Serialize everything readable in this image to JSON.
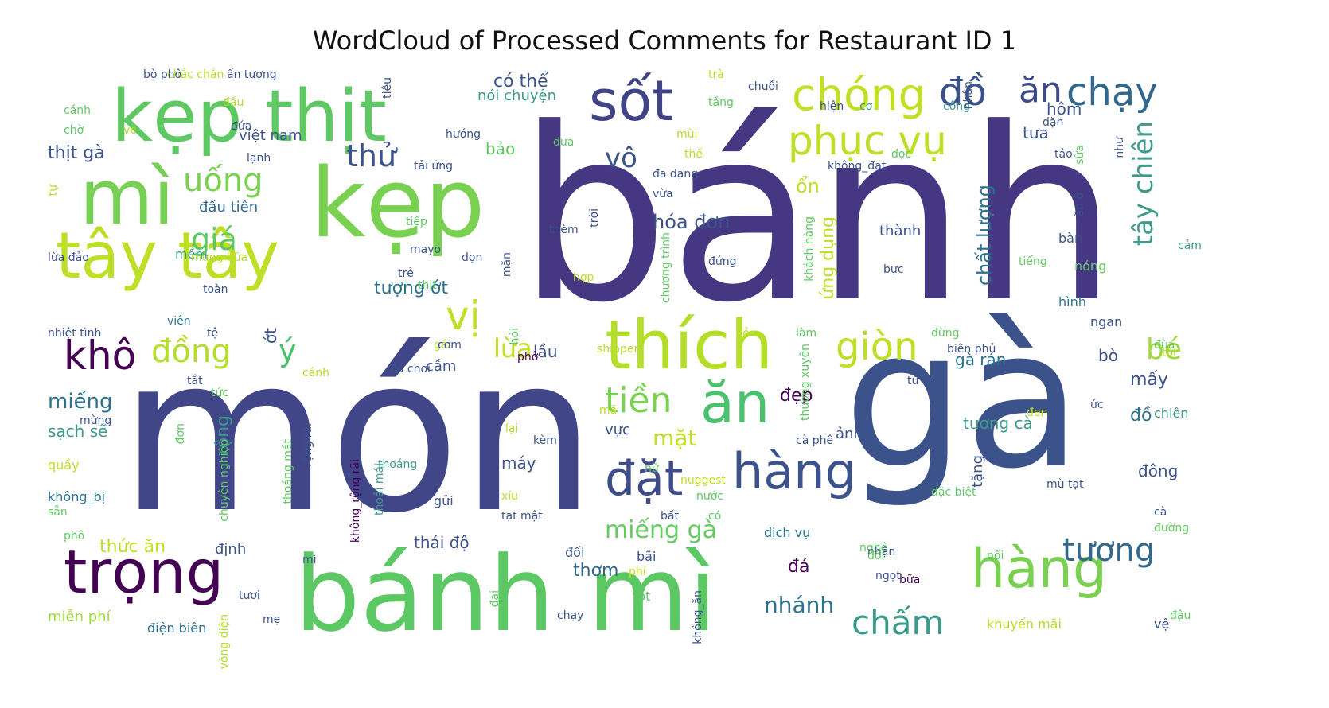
{
  "chart_data": {
    "type": "wordcloud",
    "title": "WordCloud of Processed Comments for Restaurant ID 1",
    "colormap": "viridis",
    "background": "#ffffff",
    "words": [
      {
        "text": "bánh",
        "weight": 100,
        "color": "#453781"
      },
      {
        "text": "món",
        "weight": 86,
        "color": "#404688"
      },
      {
        "text": "gà",
        "weight": 84,
        "color": "#3b528b"
      },
      {
        "text": "bánh mì",
        "weight": 50,
        "color": "#5cc863"
      },
      {
        "text": "kẹp",
        "weight": 46,
        "color": "#7ad151"
      },
      {
        "text": "kẹp thịt",
        "weight": 31,
        "color": "#5ec962"
      },
      {
        "text": "mì",
        "weight": 29,
        "color": "#75d054"
      },
      {
        "text": "tây tây",
        "weight": 26,
        "color": "#bddf26"
      },
      {
        "text": "trọng",
        "weight": 22,
        "color": "#440154"
      },
      {
        "text": "sốt",
        "weight": 20,
        "color": "#414487"
      },
      {
        "text": "thích",
        "weight": 22,
        "color": "#b5de2b"
      },
      {
        "text": "hàng",
        "weight": 19,
        "color": "#7ad151"
      },
      {
        "text": "ăn",
        "weight": 18,
        "color": "#4ac16d"
      },
      {
        "text": "đặt",
        "weight": 16,
        "color": "#3e4c8a"
      },
      {
        "text": "hàng",
        "weight": 15,
        "color": "#3b528b"
      },
      {
        "text": "chóng",
        "weight": 14,
        "color": "#c2df23"
      },
      {
        "text": "chạy",
        "weight": 13,
        "color": "#31688e"
      },
      {
        "text": "đồ",
        "weight": 12,
        "color": "#3b528b"
      },
      {
        "text": "ăn",
        "weight": 12,
        "color": "#3e4a89"
      },
      {
        "text": "khô",
        "weight": 12,
        "color": "#440154"
      },
      {
        "text": "phục vụ",
        "weight": 12,
        "color": "#bddf26"
      },
      {
        "text": "vị",
        "weight": 11,
        "color": "#bddf26"
      },
      {
        "text": "giòn",
        "weight": 11,
        "color": "#bddf26"
      },
      {
        "text": "chấm",
        "weight": 11,
        "color": "#3b9b8a"
      },
      {
        "text": "tương",
        "weight": 10,
        "color": "#31688e"
      },
      {
        "text": "tiền",
        "weight": 10,
        "color": "#7ad151"
      },
      {
        "text": "uống",
        "weight": 10,
        "color": "#7ad151"
      },
      {
        "text": "đồng",
        "weight": 10,
        "color": "#b5de2b"
      },
      {
        "text": "ý",
        "weight": 9,
        "color": "#4ac16d"
      },
      {
        "text": "thử",
        "weight": 9,
        "color": "#3b528b"
      },
      {
        "text": "giá",
        "weight": 9,
        "color": "#5ec962"
      },
      {
        "text": "tây chiên",
        "weight": 9,
        "color": "#3e9a8a"
      },
      {
        "text": "bé",
        "weight": 9,
        "color": "#a0da39"
      },
      {
        "text": "lừa",
        "weight": 8,
        "color": "#c2df23"
      },
      {
        "text": "vô",
        "weight": 8,
        "color": "#3b528b"
      },
      {
        "text": "miếng gà",
        "weight": 8,
        "color": "#63cb5f"
      },
      {
        "text": "nhánh",
        "weight": 7,
        "color": "#2c728e"
      },
      {
        "text": "mặt",
        "weight": 7,
        "color": "#c2df23"
      },
      {
        "text": "chất lượng",
        "weight": 6,
        "color": "#2c728e"
      },
      {
        "text": "có thể",
        "weight": 6,
        "color": "#3b528b"
      },
      {
        "text": "hóa đơn",
        "weight": 6,
        "color": "#3b528b"
      },
      {
        "text": "ổn",
        "weight": 6,
        "color": "#c2df23"
      },
      {
        "text": "miếng",
        "weight": 6,
        "color": "#2c728e"
      },
      {
        "text": "thịt gà",
        "weight": 5,
        "color": "#3b528b"
      },
      {
        "text": "tượng ớt",
        "weight": 5,
        "color": "#2c728e"
      },
      {
        "text": "thức ăn",
        "weight": 5,
        "color": "#bddf26"
      },
      {
        "text": "thái độ",
        "weight": 5,
        "color": "#3b528b"
      },
      {
        "text": "lầu",
        "weight": 5,
        "color": "#3b528b"
      },
      {
        "text": "máy",
        "weight": 5,
        "color": "#3b528b"
      },
      {
        "text": "đẹp",
        "weight": 5,
        "color": "#440154"
      },
      {
        "text": "thơm",
        "weight": 5,
        "color": "#31688e"
      },
      {
        "text": "đá",
        "weight": 5,
        "color": "#440154"
      },
      {
        "text": "ứng dụng",
        "weight": 5,
        "color": "#c2df23"
      },
      {
        "text": "tưa",
        "weight": 5,
        "color": "#3b528b"
      },
      {
        "text": "hôm",
        "weight": 5,
        "color": "#3b528b"
      },
      {
        "text": "rộng",
        "weight": 5,
        "color": "#3e9a8a"
      },
      {
        "text": "sạch sẽ",
        "weight": 5,
        "color": "#3e9a8a"
      },
      {
        "text": "gà rán",
        "weight": 5,
        "color": "#2c728e"
      },
      {
        "text": "mấy",
        "weight": 5,
        "color": "#3b528b"
      },
      {
        "text": "đồ",
        "weight": 5,
        "color": "#2c728e"
      },
      {
        "text": "ớt",
        "weight": 4,
        "color": "#3b528b"
      },
      {
        "text": "bảo",
        "weight": 4,
        "color": "#5ec962"
      },
      {
        "text": "bò",
        "weight": 4,
        "color": "#3b528b"
      },
      {
        "text": "tương cà",
        "weight": 4,
        "color": "#3e9a8a"
      },
      {
        "text": "việt nam",
        "weight": 4,
        "color": "#3b528b"
      },
      {
        "text": "cầm",
        "weight": 4,
        "color": "#3b528b"
      },
      {
        "text": "thành",
        "weight": 4,
        "color": "#3b528b"
      },
      {
        "text": "đầu tiên",
        "weight": 4,
        "color": "#31688e"
      },
      {
        "text": "mềm",
        "weight": 4,
        "color": "#3e9a8a"
      },
      {
        "text": "nói chuyện",
        "weight": 4,
        "color": "#3e9a8a"
      },
      {
        "text": "vực",
        "weight": 4,
        "color": "#3b528b"
      },
      {
        "text": "tặng",
        "weight": 4,
        "color": "#3b528b"
      },
      {
        "text": "ảnh",
        "weight": 4,
        "color": "#3b528b"
      },
      {
        "text": "định",
        "weight": 4,
        "color": "#3b528b"
      },
      {
        "text": "đông",
        "weight": 4,
        "color": "#3b528b"
      },
      {
        "text": "gửi",
        "weight": 4,
        "color": "#3b528b"
      },
      {
        "text": "dịch vụ",
        "weight": 3,
        "color": "#2c728e"
      },
      {
        "text": "đối",
        "weight": 3,
        "color": "#3b528b"
      },
      {
        "text": "bãi",
        "weight": 3,
        "color": "#3b528b"
      },
      {
        "text": "tốt",
        "weight": 3,
        "color": "#5ec962"
      },
      {
        "text": "miễn phí",
        "weight": 3,
        "color": "#a0da39"
      },
      {
        "text": "điện biên",
        "weight": 3,
        "color": "#2c728e"
      },
      {
        "text": "khuyến mãi",
        "weight": 3,
        "color": "#b5de2b"
      },
      {
        "text": "vệ",
        "weight": 3,
        "color": "#3b528b"
      },
      {
        "text": "đậu",
        "weight": 3,
        "color": "#5ec962"
      },
      {
        "text": "bàn",
        "weight": 3,
        "color": "#3b528b"
      },
      {
        "text": "nóng",
        "weight": 3,
        "color": "#63cb5f"
      },
      {
        "text": "hình",
        "weight": 3,
        "color": "#2c728e"
      },
      {
        "text": "ngan",
        "weight": 3,
        "color": "#3b528b"
      },
      {
        "text": "đùa",
        "weight": 3,
        "color": "#63cb5f"
      },
      {
        "text": "tối",
        "weight": 3,
        "color": "#b5de2b"
      },
      {
        "text": "biên phủ",
        "weight": 3,
        "color": "#3b528b"
      },
      {
        "text": "chiên",
        "weight": 3,
        "color": "#3e9a8a"
      },
      {
        "text": "ức",
        "weight": 3,
        "color": "#3b528b"
      },
      {
        "text": "từ",
        "weight": 3,
        "color": "#3b528b"
      },
      {
        "text": "cà",
        "weight": 3,
        "color": "#3b528b"
      },
      {
        "text": "đường",
        "weight": 3,
        "color": "#63cb5f"
      },
      {
        "text": "quầy",
        "weight": 3,
        "color": "#c2df23"
      },
      {
        "text": "phô",
        "weight": 3,
        "color": "#5ec962"
      },
      {
        "text": "không_bị",
        "weight": 3,
        "color": "#2c728e"
      },
      {
        "text": "sẵn",
        "weight": 2,
        "color": "#5ec962"
      },
      {
        "text": "nhiệt tình",
        "weight": 3,
        "color": "#3b528b"
      },
      {
        "text": "lừa đảo",
        "weight": 3,
        "color": "#3b528b"
      },
      {
        "text": "viên",
        "weight": 3,
        "color": "#2c728e"
      },
      {
        "text": "chờ",
        "weight": 3,
        "color": "#5ec962"
      },
      {
        "text": "cánh",
        "weight": 3,
        "color": "#5ec962"
      },
      {
        "text": "đầu",
        "weight": 3,
        "color": "#b5de2b"
      },
      {
        "text": "đứa",
        "weight": 2,
        "color": "#3b528b"
      },
      {
        "text": "ấn tượng",
        "weight": 2,
        "color": "#3b528b"
      },
      {
        "text": "chắc chắn",
        "weight": 2,
        "color": "#b5de2b"
      },
      {
        "text": "bò phô",
        "weight": 2,
        "color": "#3b528b"
      },
      {
        "text": "vẻ",
        "weight": 2,
        "color": "#b5de2b"
      },
      {
        "text": "lạnh",
        "weight": 2,
        "color": "#3b528b"
      },
      {
        "text": "hướng",
        "weight": 2,
        "color": "#3b528b"
      },
      {
        "text": "tiêu",
        "weight": 2,
        "color": "#3b528b"
      },
      {
        "text": "trà",
        "weight": 2,
        "color": "#b5de2b"
      },
      {
        "text": "chuỗi",
        "weight": 2,
        "color": "#3b528b"
      },
      {
        "text": "tầng",
        "weight": 2,
        "color": "#5ec962"
      },
      {
        "text": "hiện",
        "weight": 2,
        "color": "#3b528b"
      },
      {
        "text": "cơ",
        "weight": 2,
        "color": "#3e9a8a"
      },
      {
        "text": "công",
        "weight": 2,
        "color": "#3e9a8a"
      },
      {
        "text": "nhân",
        "weight": 2,
        "color": "#3b528b"
      },
      {
        "text": "dặn",
        "weight": 2,
        "color": "#3b528b"
      },
      {
        "text": "sữa",
        "weight": 2,
        "color": "#5ec962"
      },
      {
        "text": "tảo",
        "weight": 2,
        "color": "#3b528b"
      },
      {
        "text": "như",
        "weight": 2,
        "color": "#3b528b"
      },
      {
        "text": "đọc",
        "weight": 2,
        "color": "#5ec962"
      },
      {
        "text": "không_đạt",
        "weight": 2,
        "color": "#3b528b"
      },
      {
        "text": "thế",
        "weight": 2,
        "color": "#b5de2b"
      },
      {
        "text": "mùi",
        "weight": 2,
        "color": "#b5de2b"
      },
      {
        "text": "dưa",
        "weight": 2,
        "color": "#5ec962"
      },
      {
        "text": "tải ứng",
        "weight": 2,
        "color": "#3b528b"
      },
      {
        "text": "đa dạng",
        "weight": 2,
        "color": "#3b528b"
      },
      {
        "text": "vừa",
        "weight": 2,
        "color": "#3b528b"
      },
      {
        "text": "thèm",
        "weight": 2,
        "color": "#3b528b"
      },
      {
        "text": "trời",
        "weight": 2,
        "color": "#3b528b"
      },
      {
        "text": "tiếp",
        "weight": 2,
        "color": "#5ec962"
      },
      {
        "text": "mayo",
        "weight": 2,
        "color": "#3b528b"
      },
      {
        "text": "dọn",
        "weight": 2,
        "color": "#3b528b"
      },
      {
        "text": "mặn",
        "weight": 2,
        "color": "#3b528b"
      },
      {
        "text": "mừng bữa",
        "weight": 2,
        "color": "#b5de2b"
      },
      {
        "text": "trẻ",
        "weight": 2,
        "color": "#3b528b"
      },
      {
        "text": "thịt",
        "weight": 2,
        "color": "#5ec962"
      },
      {
        "text": "toàn",
        "weight": 2,
        "color": "#3b528b"
      },
      {
        "text": "tệ",
        "weight": 2,
        "color": "#3b528b"
      },
      {
        "text": "gái",
        "weight": 2,
        "color": "#b5de2b"
      },
      {
        "text": "cơm",
        "weight": 2,
        "color": "#3b528b"
      },
      {
        "text": "shipper",
        "weight": 2,
        "color": "#b5de2b"
      },
      {
        "text": "hỏi",
        "weight": 2,
        "color": "#5ec962"
      },
      {
        "text": "phở",
        "weight": 2,
        "color": "#440154"
      },
      {
        "text": "đồ chơi",
        "weight": 2,
        "color": "#3b528b"
      },
      {
        "text": "cánh",
        "weight": 2,
        "color": "#b5de2b"
      },
      {
        "text": "tắt",
        "weight": 2,
        "color": "#3b528b"
      },
      {
        "text": "tức",
        "weight": 2,
        "color": "#5ec962"
      },
      {
        "text": "mừng",
        "weight": 2,
        "color": "#3b528b"
      },
      {
        "text": "đơn",
        "weight": 2,
        "color": "#5ec962"
      },
      {
        "text": "chuyên nghiệp",
        "weight": 2,
        "color": "#5ec962"
      },
      {
        "text": "rộng rãi",
        "weight": 3,
        "color": "#3b528b"
      },
      {
        "text": "không_rộng rãi",
        "weight": 2,
        "color": "#440154"
      },
      {
        "text": "thoáng mát",
        "weight": 2,
        "color": "#5ec962"
      },
      {
        "text": "thoải mái",
        "weight": 3,
        "color": "#3e9a8a"
      },
      {
        "text": "thoáng",
        "weight": 2,
        "color": "#3e9a8a"
      },
      {
        "text": "lại",
        "weight": 2,
        "color": "#b5de2b"
      },
      {
        "text": "kèm",
        "weight": 2,
        "color": "#3b528b"
      },
      {
        "text": "nữ",
        "weight": 2,
        "color": "#5ec962"
      },
      {
        "text": "xíu",
        "weight": 3,
        "color": "#b5de2b"
      },
      {
        "text": "tạt mật",
        "weight": 2,
        "color": "#3b528b"
      },
      {
        "text": "nuggest",
        "weight": 3,
        "color": "#c2df23"
      },
      {
        "text": "nước",
        "weight": 2,
        "color": "#5ec962"
      },
      {
        "text": "bất",
        "weight": 2,
        "color": "#3b528b"
      },
      {
        "text": "có",
        "weight": 2,
        "color": "#5ec962"
      },
      {
        "text": "cà phê",
        "weight": 2,
        "color": "#3b528b"
      },
      {
        "text": "đặc biệt",
        "weight": 2,
        "color": "#5ec962"
      },
      {
        "text": "mù tạt",
        "weight": 2,
        "color": "#3b528b"
      },
      {
        "text": "nghệ",
        "weight": 2,
        "color": "#5ec962"
      },
      {
        "text": "nhận",
        "weight": 2,
        "color": "#3b528b"
      },
      {
        "text": "nối",
        "weight": 2,
        "color": "#5ec962"
      },
      {
        "text": "bữa",
        "weight": 2,
        "color": "#440154"
      },
      {
        "text": "ngọt",
        "weight": 2,
        "color": "#3b528b"
      },
      {
        "text": "đổi",
        "weight": 2,
        "color": "#5ec962"
      },
      {
        "text": "phí",
        "weight": 2,
        "color": "#c2df23"
      },
      {
        "text": "mì",
        "weight": 2,
        "color": "#3b528b"
      },
      {
        "text": "không_ăn",
        "weight": 2,
        "color": "#3b528b"
      },
      {
        "text": "đại",
        "weight": 2,
        "color": "#5ec962"
      },
      {
        "text": "chạy",
        "weight": 2,
        "color": "#3b528b"
      },
      {
        "text": "vòng điện",
        "weight": 2,
        "color": "#b5de2b"
      },
      {
        "text": "tươi",
        "weight": 2,
        "color": "#3b528b"
      },
      {
        "text": "mẹ",
        "weight": 2,
        "color": "#3b528b"
      },
      {
        "text": "tự",
        "weight": 2,
        "color": "#c2df23"
      },
      {
        "text": "chương trình",
        "weight": 2,
        "color": "#5ec962"
      },
      {
        "text": "khách hàng",
        "weight": 2,
        "color": "#5ec962"
      },
      {
        "text": "thường xuyên",
        "weight": 2,
        "color": "#5ec962"
      },
      {
        "text": "đứng",
        "weight": 2,
        "color": "#3b528b"
      },
      {
        "text": "tiếng",
        "weight": 2,
        "color": "#5ec962"
      },
      {
        "text": "vỏ",
        "weight": 2,
        "color": "#c2df23"
      },
      {
        "text": "làm",
        "weight": 2,
        "color": "#5ec962"
      },
      {
        "text": "đừng",
        "weight": 2,
        "color": "#5ec962"
      },
      {
        "text": "bực",
        "weight": 2,
        "color": "#3b528b"
      },
      {
        "text": "ăn ở",
        "weight": 2,
        "color": "#3b528b"
      },
      {
        "text": "cảm",
        "weight": 2,
        "color": "#3e9a8a"
      },
      {
        "text": "đen",
        "weight": 2,
        "color": "#c2df23"
      },
      {
        "text": "hợp",
        "weight": 2,
        "color": "#c2df23"
      },
      {
        "text": "mã",
        "weight": 2,
        "color": "#c2df23"
      }
    ]
  }
}
